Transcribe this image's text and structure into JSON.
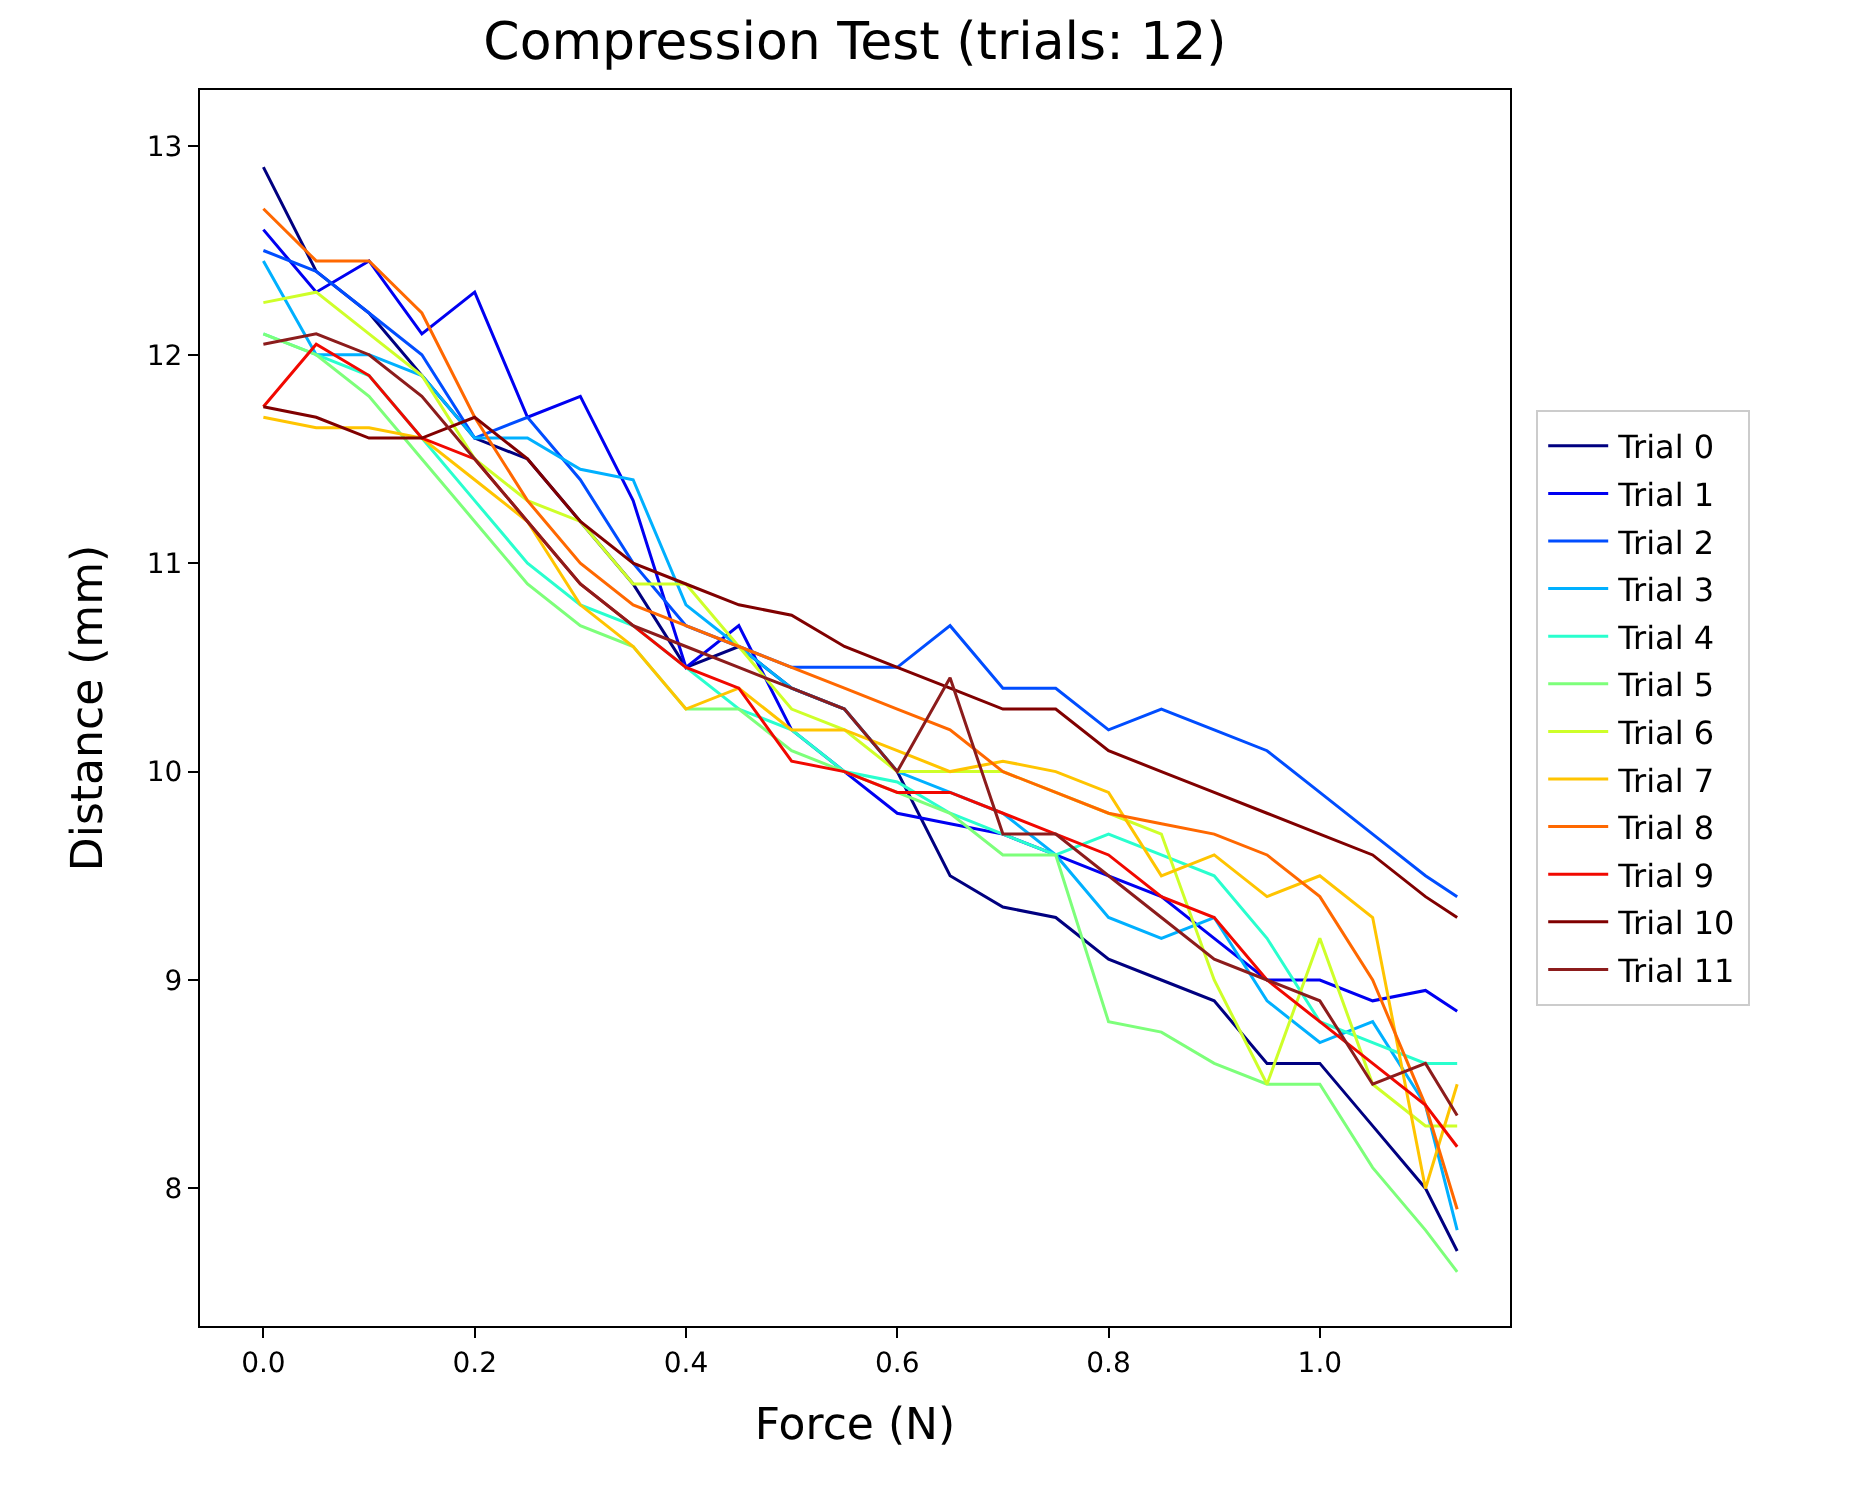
{
  "chart_data": {
    "type": "line",
    "title": "Compression Test (trials: 12)",
    "xlabel": "Force (N)",
    "ylabel": "Distance (mm)",
    "x": [
      0,
      0.05,
      0.1,
      0.15,
      0.2,
      0.25,
      0.3,
      0.35,
      0.4,
      0.45,
      0.5,
      0.55,
      0.6,
      0.65,
      0.7,
      0.75,
      0.8,
      0.85,
      0.9,
      0.95,
      1.0,
      1.05,
      1.1,
      1.13
    ],
    "xlim": [
      -0.06,
      1.18
    ],
    "xticks": [
      {
        "value": 0,
        "label": "0.0"
      },
      0.2,
      0.4,
      0.6,
      0.8,
      {
        "value": 1,
        "label": "1.0"
      }
    ],
    "ylim": [
      7.34,
      13.27
    ],
    "yticks": [
      8,
      9,
      10,
      11,
      12,
      13
    ],
    "legend": "right",
    "marker": "none",
    "line_style": "solid",
    "series": [
      {
        "name": "Trial 0",
        "color": "#000080",
        "values": [
          12.9,
          12.4,
          12.2,
          11.9,
          11.6,
          11.5,
          11.2,
          10.9,
          10.5,
          10.6,
          10.4,
          10.3,
          10.0,
          9.5,
          9.35,
          9.3,
          9.1,
          9.0,
          8.9,
          8.6,
          8.6,
          8.3,
          8.0,
          7.7
        ]
      },
      {
        "name": "Trial 1",
        "color": "#0000f1",
        "values": [
          12.6,
          12.3,
          12.45,
          12.1,
          12.3,
          11.7,
          11.8,
          11.3,
          10.5,
          10.7,
          10.2,
          10.0,
          9.8,
          9.75,
          9.7,
          9.6,
          9.5,
          9.4,
          9.2,
          9.0,
          9.0,
          8.9,
          8.95,
          8.85
        ]
      },
      {
        "name": "Trial 2",
        "color": "#004dff",
        "values": [
          12.5,
          12.4,
          12.2,
          12.0,
          11.6,
          11.7,
          11.4,
          11.0,
          10.7,
          10.6,
          10.5,
          10.5,
          10.5,
          10.7,
          10.4,
          10.4,
          10.2,
          10.3,
          10.2,
          10.1,
          9.9,
          9.7,
          9.5,
          9.4
        ]
      },
      {
        "name": "Trial 3",
        "color": "#00b0ff",
        "values": [
          12.45,
          12.0,
          12.0,
          11.9,
          11.6,
          11.6,
          11.45,
          11.4,
          10.8,
          10.6,
          10.4,
          10.3,
          10.0,
          9.9,
          9.8,
          9.6,
          9.3,
          9.2,
          9.3,
          8.9,
          8.7,
          8.8,
          8.4,
          7.8
        ]
      },
      {
        "name": "Trial 4",
        "color": "#29ffce",
        "values": [
          12.1,
          12.0,
          11.9,
          11.6,
          11.3,
          11.0,
          10.8,
          10.7,
          10.5,
          10.3,
          10.2,
          10.0,
          9.95,
          9.8,
          9.7,
          9.6,
          9.7,
          9.6,
          9.5,
          9.2,
          8.8,
          8.7,
          8.6,
          8.6
        ]
      },
      {
        "name": "Trial 5",
        "color": "#7dff7a",
        "values": [
          12.1,
          12.0,
          11.8,
          11.5,
          11.2,
          10.9,
          10.7,
          10.6,
          10.3,
          10.3,
          10.1,
          10.0,
          9.9,
          9.8,
          9.6,
          9.6,
          8.8,
          8.75,
          8.6,
          8.5,
          8.5,
          8.1,
          7.8,
          7.6
        ]
      },
      {
        "name": "Trial 6",
        "color": "#ceff29",
        "values": [
          12.25,
          12.3,
          12.1,
          11.9,
          11.5,
          11.3,
          11.2,
          10.9,
          10.9,
          10.6,
          10.3,
          10.2,
          10.0,
          10.0,
          10.0,
          9.9,
          9.8,
          9.7,
          9.0,
          8.5,
          9.2,
          8.5,
          8.3,
          8.3
        ]
      },
      {
        "name": "Trial 7",
        "color": "#ffc400",
        "values": [
          11.7,
          11.65,
          11.65,
          11.6,
          11.4,
          11.2,
          10.8,
          10.6,
          10.3,
          10.4,
          10.2,
          10.2,
          10.1,
          10.0,
          10.05,
          10.0,
          9.9,
          9.5,
          9.6,
          9.4,
          9.5,
          9.3,
          8.0,
          8.5
        ]
      },
      {
        "name": "Trial 8",
        "color": "#ff6800",
        "values": [
          12.7,
          12.45,
          12.45,
          12.2,
          11.7,
          11.3,
          11.0,
          10.8,
          10.7,
          10.6,
          10.5,
          10.4,
          10.3,
          10.2,
          10.0,
          9.9,
          9.8,
          9.75,
          9.7,
          9.6,
          9.4,
          9.0,
          8.4,
          7.9
        ]
      },
      {
        "name": "Trial 9",
        "color": "#f10800",
        "values": [
          11.75,
          12.05,
          11.9,
          11.6,
          11.5,
          11.2,
          10.9,
          10.7,
          10.5,
          10.4,
          10.05,
          10.0,
          9.9,
          9.9,
          9.8,
          9.7,
          9.6,
          9.4,
          9.3,
          9.0,
          8.8,
          8.6,
          8.4,
          8.2
        ]
      },
      {
        "name": "Trial 10",
        "color": "#800000",
        "values": [
          11.75,
          11.7,
          11.6,
          11.6,
          11.7,
          11.5,
          11.2,
          11.0,
          10.9,
          10.8,
          10.75,
          10.6,
          10.5,
          10.4,
          10.3,
          10.3,
          10.1,
          10.0,
          9.9,
          9.8,
          9.7,
          9.6,
          9.4,
          9.3
        ]
      },
      {
        "name": "Trial 11",
        "color": "#8c1c1c",
        "values": [
          12.05,
          12.1,
          12.0,
          11.8,
          11.5,
          11.2,
          10.9,
          10.7,
          10.6,
          10.5,
          10.4,
          10.3,
          10.0,
          10.45,
          9.7,
          9.7,
          9.5,
          9.3,
          9.1,
          9.0,
          8.9,
          8.5,
          8.6,
          8.35
        ]
      }
    ]
  }
}
